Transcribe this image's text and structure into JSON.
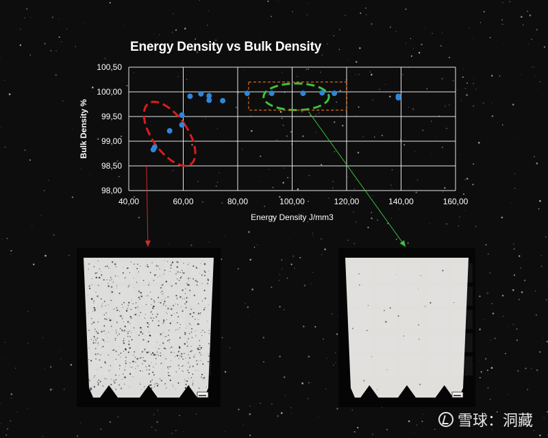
{
  "chart_data": {
    "type": "scatter",
    "title": "Energy Density vs Bulk Density",
    "xlabel": "Energy Density J/mm3",
    "ylabel": "Bulk Density %",
    "xlim": [
      40,
      160
    ],
    "ylim": [
      98,
      100.5
    ],
    "x_ticks": [
      "40,00",
      "60,00",
      "80,00",
      "100,00",
      "120,00",
      "140,00",
      "160,00"
    ],
    "y_ticks": [
      "98,00",
      "98,50",
      "99,00",
      "99,50",
      "100,00",
      "100,50"
    ],
    "grid": true,
    "series": [
      {
        "color": "#2f86d8",
        "points": [
          {
            "x": 49,
            "y": 98.83
          },
          {
            "x": 49.5,
            "y": 98.88
          },
          {
            "x": 55,
            "y": 99.21
          },
          {
            "x": 59.5,
            "y": 99.33
          },
          {
            "x": 59.5,
            "y": 99.53
          },
          {
            "x": 62.5,
            "y": 99.91
          },
          {
            "x": 66.5,
            "y": 99.96
          },
          {
            "x": 69.5,
            "y": 99.83
          },
          {
            "x": 69.5,
            "y": 99.92
          },
          {
            "x": 74.5,
            "y": 99.82
          },
          {
            "x": 83.5,
            "y": 99.97
          },
          {
            "x": 92.5,
            "y": 99.97
          },
          {
            "x": 104,
            "y": 99.97
          },
          {
            "x": 111,
            "y": 99.98
          },
          {
            "x": 115.5,
            "y": 99.97
          },
          {
            "x": 139,
            "y": 99.91
          },
          {
            "x": 139,
            "y": 99.88
          }
        ]
      }
    ],
    "annotations": [
      {
        "kind": "dashed-ellipse",
        "color": "#e01b1b",
        "cx": 55,
        "cy": 99.15,
        "rx": 6.5,
        "ry": 0.75
      },
      {
        "kind": "dashed-ellipse",
        "color": "#3cc23c",
        "cx": 101.5,
        "cy": 99.9,
        "rx": 12,
        "ry": 0.27
      },
      {
        "kind": "dashed-rect",
        "color": "#e06a1a",
        "x0": 84,
        "x1": 120,
        "y0": 99.63,
        "y1": 100.2
      }
    ],
    "arrows": [
      {
        "color": "#d42a2a",
        "from_data": [
          46.5,
          98.5
        ],
        "to_target": "left-sample"
      },
      {
        "color": "#3cc23c",
        "from_data": [
          106,
          99.6
        ],
        "to_target": "right-sample"
      }
    ]
  },
  "watermark": {
    "text": "雪球：洞藏"
  }
}
